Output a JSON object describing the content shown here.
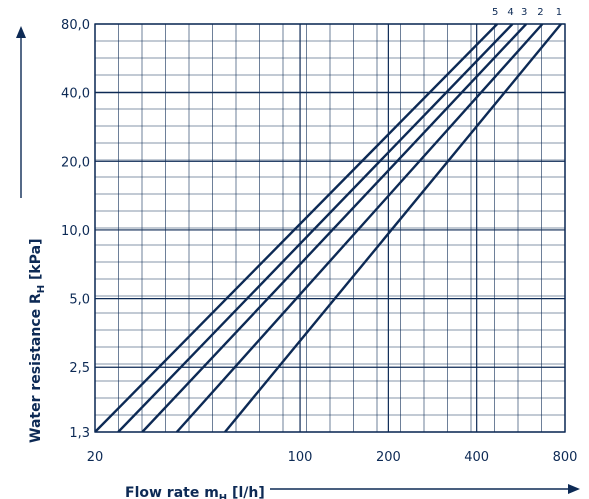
{
  "chart_data": {
    "type": "line",
    "xlabel": "Flow rate m",
    "xlabel_sub": "H",
    "xlabel_unit": " [l/h]",
    "ylabel": "Water resistance R",
    "ylabel_sub": "H",
    "ylabel_unit": " [kPa]",
    "x_scale": "log",
    "y_scale": "log",
    "xlim": [
      20,
      800
    ],
    "ylim": [
      1.3,
      80
    ],
    "x_ticks": [
      {
        "value": 20,
        "label": "20"
      },
      {
        "value": 100,
        "label": "100"
      },
      {
        "value": 200,
        "label": "200"
      },
      {
        "value": 400,
        "label": "400"
      },
      {
        "value": 800,
        "label": "800"
      }
    ],
    "y_ticks": [
      {
        "value": 1.3,
        "label": "1,3"
      },
      {
        "value": 2.5,
        "label": "2,5"
      },
      {
        "value": 5,
        "label": "5,0"
      },
      {
        "value": 10,
        "label": "10,0"
      },
      {
        "value": 20,
        "label": "20,0"
      },
      {
        "value": 40,
        "label": "40,0"
      },
      {
        "value": 80,
        "label": "80,0"
      }
    ],
    "grid": true,
    "colors": {
      "line": "#0d2a55",
      "grid": "#0d2a55"
    },
    "series": [
      {
        "name": "1",
        "x": [
          55.5,
          775
        ],
        "y": [
          1.3,
          80
        ]
      },
      {
        "name": "2",
        "x": [
          38,
          670
        ],
        "y": [
          1.3,
          80
        ]
      },
      {
        "name": "3",
        "x": [
          29,
          590
        ],
        "y": [
          1.3,
          80
        ]
      },
      {
        "name": "4",
        "x": [
          24,
          530
        ],
        "y": [
          1.3,
          80
        ]
      },
      {
        "name": "5",
        "x": [
          20,
          470
        ],
        "y": [
          1.3,
          80
        ]
      }
    ]
  }
}
